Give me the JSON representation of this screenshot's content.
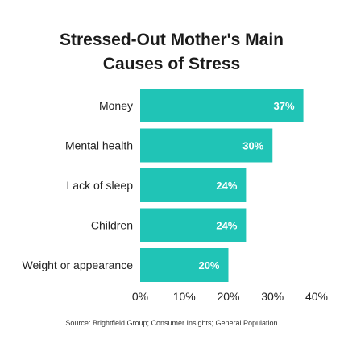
{
  "chart_data": {
    "type": "bar",
    "orientation": "horizontal",
    "title": "Stressed-Out Mother's Main Causes of Stress",
    "title_lines": [
      "Stressed-Out Mother's Main",
      "Causes of Stress"
    ],
    "categories": [
      "Money",
      "Mental health",
      "Lack of sleep",
      "Children",
      "Weight or appearance"
    ],
    "values": [
      37,
      30,
      24,
      24,
      20
    ],
    "value_labels": [
      "37%",
      "30%",
      "24%",
      "24%",
      "20%"
    ],
    "xlim": [
      0,
      40
    ],
    "x_ticks": [
      0,
      10,
      20,
      30,
      40
    ],
    "x_tick_labels": [
      "0%",
      "10%",
      "20%",
      "30%",
      "40%"
    ],
    "xlabel": "",
    "ylabel": "",
    "grid": false,
    "legend": "none",
    "bar_color": "#20c4b6",
    "source": "Source: Brightfield Group; Consumer Insights; General Population"
  }
}
